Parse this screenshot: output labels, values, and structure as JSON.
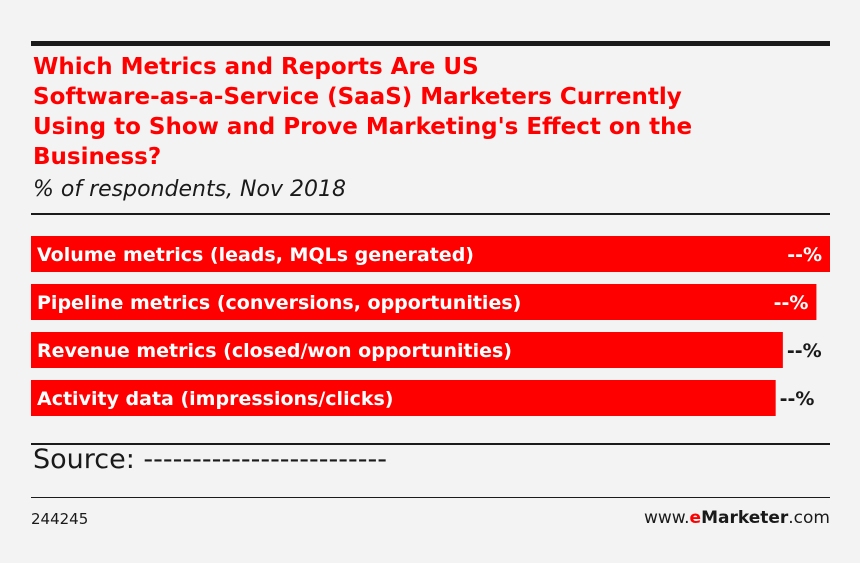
{
  "chart_data": {
    "type": "bar",
    "orientation": "horizontal",
    "title": "Which Metrics and Reports Are US Software-as-a-Service (SaaS) Marketers Currently Using to Show and Prove Marketing's Effect on the Business?",
    "title_lines": [
      "Which Metrics and Reports Are US",
      "Software-as-a-Service (SaaS) Marketers Currently",
      "Using to Show and Prove Marketing's Effect on the",
      "Business?"
    ],
    "subtitle": "% of respondents, Nov 2018",
    "categories": [
      "Volume metrics (leads, MQLs generated)",
      "Pipeline metrics (conversions, opportunities)",
      "Revenue metrics (closed/won opportunities)",
      "Activity data (impressions/clicks)"
    ],
    "values": [
      100,
      98.3,
      94.1,
      93.2
    ],
    "value_labels": [
      "--%",
      "--%",
      "--%",
      "--%"
    ],
    "xlim": [
      0,
      100
    ],
    "bar_color": "#ff0000",
    "grid": false,
    "legend": "none"
  },
  "footer": {
    "source": "Source: -------------------------",
    "chart_id": "244245",
    "brand_prefix": "www.",
    "brand_e": "e",
    "brand_name": "Marketer",
    "brand_suffix": ".com"
  }
}
